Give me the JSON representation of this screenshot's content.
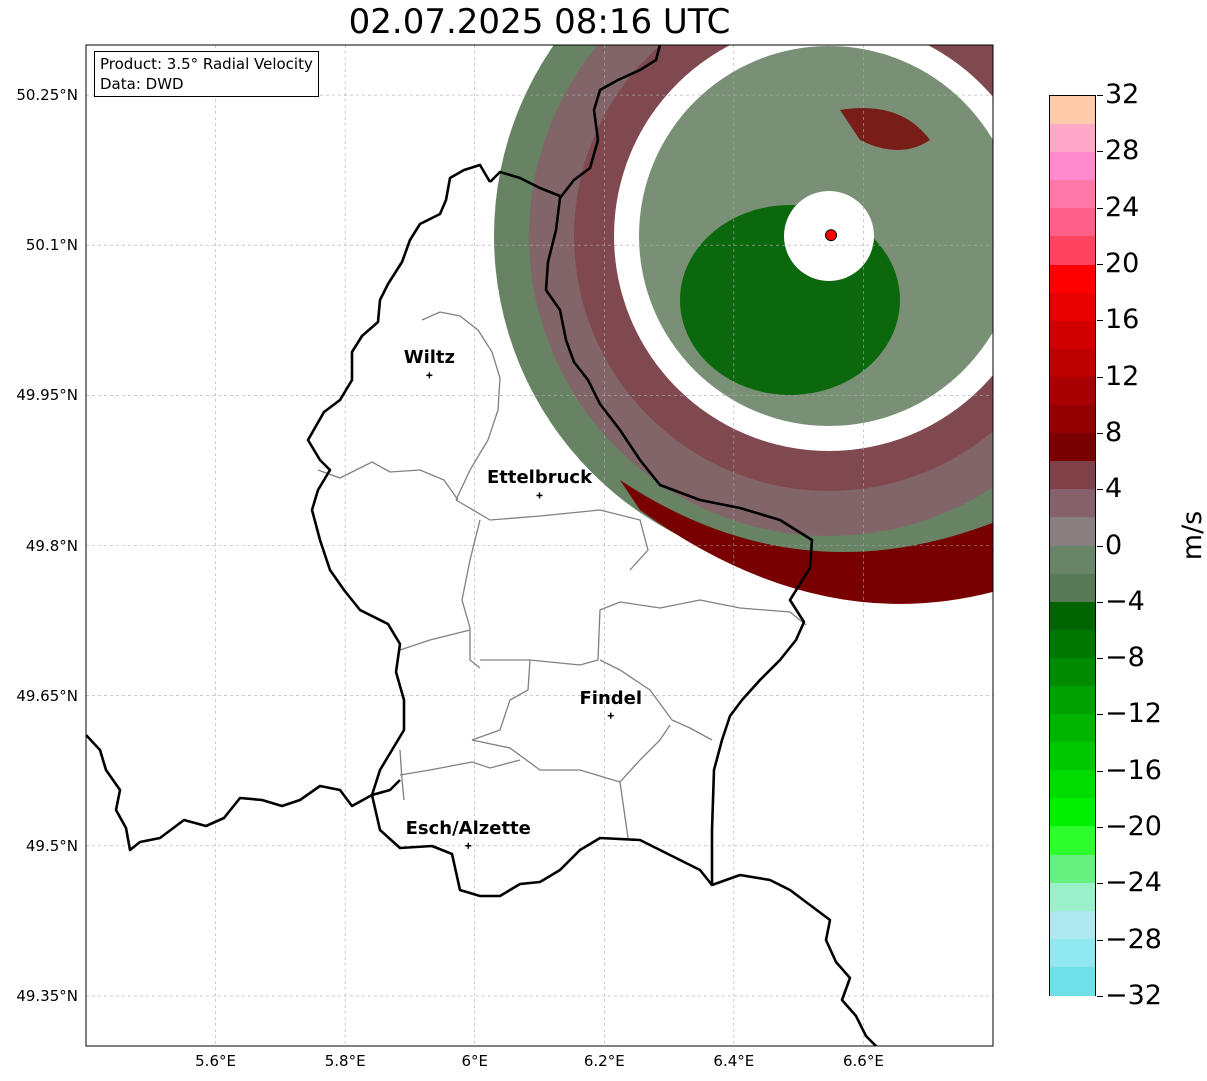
{
  "title": "02.07.2025 08:16 UTC",
  "info": {
    "product": "Product: 3.5° Radial Velocity",
    "data_source": "Data: DWD"
  },
  "map": {
    "lon_range": [
      5.4,
      6.8
    ],
    "lat_range": [
      49.3,
      50.3
    ],
    "lat_ticks": [
      {
        "value": 50.25,
        "label": "50.25°N"
      },
      {
        "value": 50.1,
        "label": "50.1°N"
      },
      {
        "value": 49.95,
        "label": "49.95°N"
      },
      {
        "value": 49.8,
        "label": "49.8°N"
      },
      {
        "value": 49.65,
        "label": "49.65°N"
      },
      {
        "value": 49.5,
        "label": "49.5°N"
      },
      {
        "value": 49.35,
        "label": "49.35°N"
      }
    ],
    "lon_ticks": [
      {
        "value": 5.6,
        "label": "5.6°E"
      },
      {
        "value": 5.8,
        "label": "5.8°E"
      },
      {
        "value": 6.0,
        "label": "6°E"
      },
      {
        "value": 6.2,
        "label": "6.2°E"
      },
      {
        "value": 6.4,
        "label": "6.4°E"
      },
      {
        "value": 6.6,
        "label": "6.6°E"
      }
    ],
    "gridlines": true,
    "radar_site": {
      "lon": 6.55,
      "lat": 50.11,
      "color": "#ff0000"
    },
    "cities": [
      {
        "name": "Wiltz",
        "lon": 5.93,
        "lat": 49.97
      },
      {
        "name": "Ettelbruck",
        "lon": 6.1,
        "lat": 49.85
      },
      {
        "name": "Findel",
        "lon": 6.21,
        "lat": 49.63
      },
      {
        "name": "Esch/Alzette",
        "lon": 5.99,
        "lat": 49.5
      }
    ]
  },
  "colorbar": {
    "unit": "m/s",
    "range": [
      -32,
      32
    ],
    "tick_labels": [
      "32",
      "28",
      "24",
      "20",
      "16",
      "12",
      "8",
      "4",
      "0",
      "−4",
      "−8",
      "−12",
      "−16",
      "−20",
      "−24",
      "−28",
      "−32"
    ],
    "colors_top_to_bottom": [
      "#ffcbab",
      "#ffa8c8",
      "#ff8acd",
      "#ff78a8",
      "#ff6088",
      "#ff4460",
      "#ff0000",
      "#e80000",
      "#d00000",
      "#bc0000",
      "#a80000",
      "#920000",
      "#780000",
      "#804048",
      "#86606a",
      "#888080",
      "#6a8468",
      "#587856",
      "#006400",
      "#007800",
      "#008a00",
      "#00a000",
      "#00b400",
      "#00c800",
      "#00dc00",
      "#00f000",
      "#2cff2c",
      "#66f080",
      "#9af0c8",
      "#b0e8f0",
      "#90e8f0",
      "#70e0e8"
    ]
  }
}
